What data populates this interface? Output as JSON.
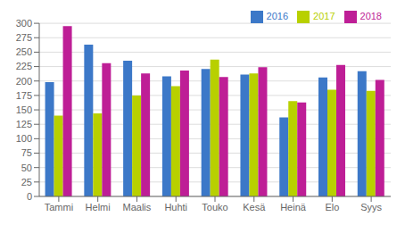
{
  "chart_data": {
    "type": "bar",
    "categories": [
      "Tammi",
      "Helmi",
      "Maalis",
      "Huhti",
      "Touko",
      "Kesä",
      "Heinä",
      "Elo",
      "Syys"
    ],
    "series": [
      {
        "name": "2016",
        "color": "#3c78c8",
        "values": [
          198,
          263,
          235,
          208,
          221,
          211,
          137,
          206,
          217
        ]
      },
      {
        "name": "2017",
        "color": "#b8d000",
        "values": [
          140,
          144,
          175,
          191,
          237,
          213,
          165,
          185,
          183
        ]
      },
      {
        "name": "2018",
        "color": "#be1e96",
        "values": [
          295,
          231,
          213,
          218,
          207,
          224,
          163,
          228,
          202
        ]
      }
    ],
    "ylim": [
      0,
      300
    ],
    "yticks": [
      0,
      25,
      50,
      75,
      100,
      125,
      150,
      175,
      200,
      225,
      250,
      275,
      300
    ],
    "grid": true,
    "legend": "upper right"
  }
}
